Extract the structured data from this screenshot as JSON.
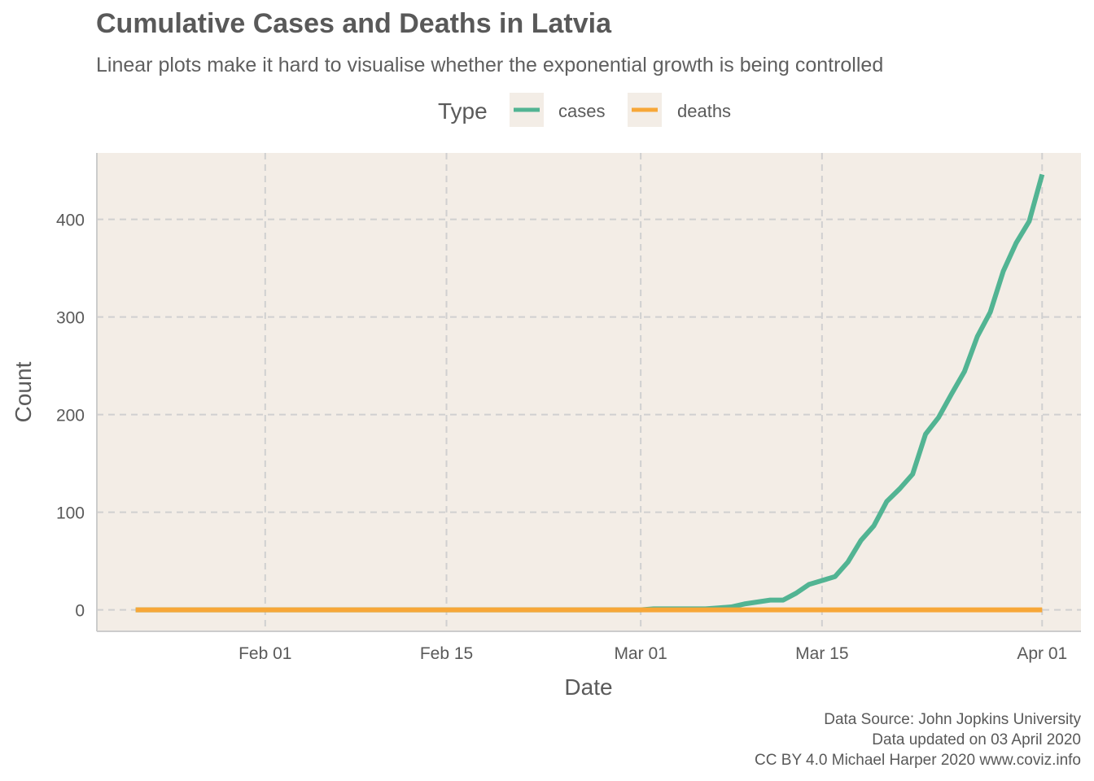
{
  "chart_data": {
    "type": "line",
    "title": "Cumulative Cases and Deaths in Latvia",
    "subtitle": "Linear plots make it hard to visualise whether the exponential growth is being controlled",
    "xlabel": "Date",
    "ylabel": "Count",
    "legend": {
      "title": "Type",
      "position": "top"
    },
    "x_ticks": [
      {
        "date": "2020-02-01",
        "label": "Feb 01"
      },
      {
        "date": "2020-02-15",
        "label": "Feb 15"
      },
      {
        "date": "2020-03-01",
        "label": "Mar 01"
      },
      {
        "date": "2020-03-15",
        "label": "Mar 15"
      },
      {
        "date": "2020-04-01",
        "label": "Apr 01"
      }
    ],
    "y_ticks": [
      0,
      100,
      200,
      300,
      400
    ],
    "xlim": [
      "2020-01-19",
      "2020-04-04"
    ],
    "ylim": [
      -22,
      468
    ],
    "grid": true,
    "series": [
      {
        "name": "cases",
        "color": "#52b493",
        "points": [
          [
            "2020-01-22",
            0
          ],
          [
            "2020-03-01",
            0
          ],
          [
            "2020-03-02",
            1
          ],
          [
            "2020-03-06",
            1
          ],
          [
            "2020-03-07",
            2
          ],
          [
            "2020-03-08",
            3
          ],
          [
            "2020-03-09",
            6
          ],
          [
            "2020-03-10",
            8
          ],
          [
            "2020-03-11",
            10
          ],
          [
            "2020-03-12",
            10
          ],
          [
            "2020-03-13",
            17
          ],
          [
            "2020-03-14",
            26
          ],
          [
            "2020-03-15",
            30
          ],
          [
            "2020-03-16",
            34
          ],
          [
            "2020-03-17",
            49
          ],
          [
            "2020-03-18",
            71
          ],
          [
            "2020-03-19",
            86
          ],
          [
            "2020-03-20",
            111
          ],
          [
            "2020-03-21",
            124
          ],
          [
            "2020-03-22",
            139
          ],
          [
            "2020-03-23",
            180
          ],
          [
            "2020-03-24",
            197
          ],
          [
            "2020-03-25",
            221
          ],
          [
            "2020-03-26",
            244
          ],
          [
            "2020-03-27",
            280
          ],
          [
            "2020-03-28",
            305
          ],
          [
            "2020-03-29",
            347
          ],
          [
            "2020-03-30",
            376
          ],
          [
            "2020-03-31",
            398
          ],
          [
            "2020-04-01",
            446
          ]
        ]
      },
      {
        "name": "deaths",
        "color": "#f7a738",
        "points": [
          [
            "2020-01-22",
            0
          ],
          [
            "2020-04-01",
            0
          ]
        ]
      }
    ]
  },
  "caption": {
    "line1": "Data Source: John Jopkins University",
    "line2": "Data updated on 03 April 2020",
    "line3": "CC BY 4.0 Michael Harper 2020 www.coviz.info"
  },
  "colors": {
    "panel": "#f3ede6",
    "grid": "#d0d0d0",
    "axis": "#cccccc"
  }
}
